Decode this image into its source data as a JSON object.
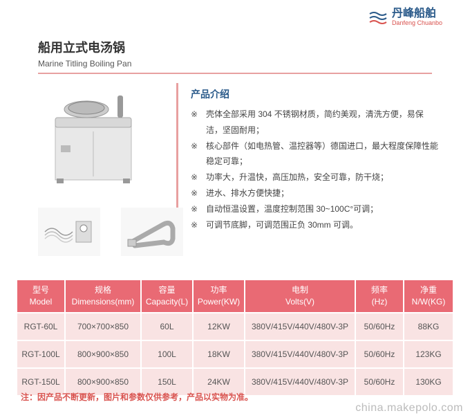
{
  "logo": {
    "name_cn": "丹峰船舶",
    "name_en": "Danfeng Chuanbo"
  },
  "title": {
    "cn": "船用立式电汤锅",
    "en": "Marine Titling Boiling Pan"
  },
  "intro": {
    "heading": "产品介绍",
    "items": [
      "壳体全部采用 304 不锈钢材质，简约美观，清洗方便，易保洁，坚固耐用；",
      "核心部件（如电热管、温控器等）德国进口，最大程度保障性能稳定可靠；",
      "功率大，升温快，高压加热，安全可靠，防干烧；",
      "进水、排水方便快捷；",
      "自动恒温设置，温度控制范围 30~100C°可调；",
      "可调节底脚，可调范围正负 30mm 可调。"
    ]
  },
  "table": {
    "headers": {
      "model": {
        "cn": "型号",
        "en": "Model"
      },
      "dims": {
        "cn": "规格",
        "en": "Dimensions(mm)"
      },
      "capacity": {
        "cn": "容量",
        "en": "Capacity(L)"
      },
      "power": {
        "cn": "功率",
        "en": "Power(KW)"
      },
      "volts": {
        "cn": "电制",
        "en": "Volts(V)"
      },
      "freq": {
        "cn": "频率",
        "en": "(Hz)"
      },
      "weight": {
        "cn": "净重",
        "en": "N/W(KG)"
      }
    },
    "rows": [
      {
        "model": "RGT-60L",
        "dims": "700×700×850",
        "capacity": "60L",
        "power": "12KW",
        "volts": "380V/415V/440V/480V-3P",
        "freq": "50/60Hz",
        "weight": "88KG"
      },
      {
        "model": "RGT-100L",
        "dims": "800×900×850",
        "capacity": "100L",
        "power": "18KW",
        "volts": "380V/415V/440V/480V-3P",
        "freq": "50/60Hz",
        "weight": "123KG"
      },
      {
        "model": "RGT-150L",
        "dims": "800×900×850",
        "capacity": "150L",
        "power": "24KW",
        "volts": "380V/415V/440V/480V-3P",
        "freq": "50/60Hz",
        "weight": "130KG"
      }
    ],
    "col_widths": [
      "70",
      "110",
      "75",
      "75",
      "160",
      "70",
      "70"
    ]
  },
  "note": "注：因产品不断更新，图片和参数仅供参考，产品以实物为准。",
  "watermark": "china.makepolo.com",
  "colors": {
    "brand_blue": "#2a5a8a",
    "brand_red": "#d9534f",
    "accent_pink": "#e8a0a0",
    "table_head": "#e96a74",
    "table_cell": "#f9e3e3"
  }
}
